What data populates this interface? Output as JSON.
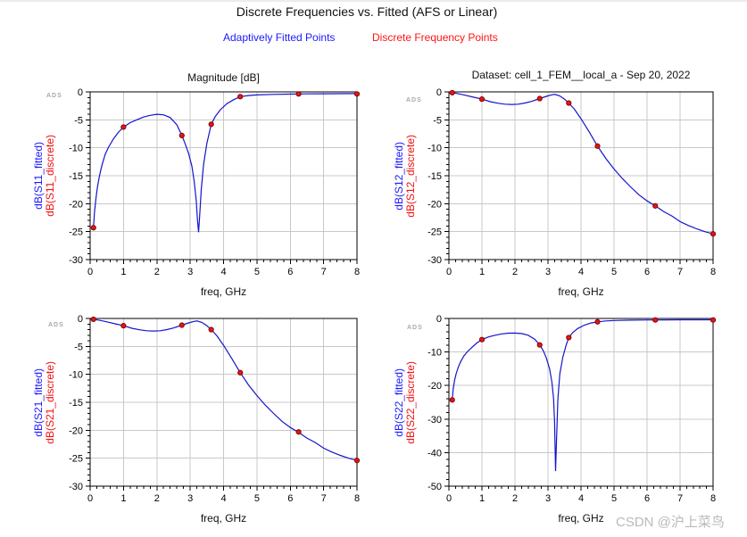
{
  "header": {
    "title": "Discrete Frequencies vs. Fitted (AFS or Linear)",
    "legend_fitted": "Adaptively Fitted Points",
    "legend_discrete": "Discrete Frequency Points"
  },
  "branding": {
    "ads_logo": "ADS",
    "csdn_watermark": "CSDN @沪上菜鸟"
  },
  "colors": {
    "fitted_curve": "#1414cc",
    "discrete_marker": "#e01818",
    "discrete_marker_edge": "#8b0000",
    "legend_fitted_text": "#1a1aff",
    "legend_discrete_text": "#ff1414",
    "grid": "#c8c8c8",
    "axis": "#000000",
    "ads_logo_gray": "#a9a9a9",
    "csdn_watermark_gray": "#b9b9b9"
  },
  "chart_data": [
    {
      "id": "s11",
      "type": "line",
      "title": "Magnitude [dB]",
      "xlabel": "freq, GHz",
      "ylabel_fitted": "dB(S11_fitted)",
      "ylabel_discrete": "dB(S11_discrete)",
      "xlim": [
        0,
        8
      ],
      "ylim": [
        -30,
        0
      ],
      "xticks": [
        0,
        1,
        2,
        3,
        4,
        5,
        6,
        7,
        8
      ],
      "yticks": [
        0,
        -5,
        -10,
        -15,
        -20,
        -25,
        -30
      ],
      "x_minor_subdiv": 5,
      "y_minor_subdiv": 5,
      "grid": true,
      "series": [
        {
          "name": "fitted",
          "style": "line",
          "points": [
            [
              0.1,
              -24.3
            ],
            [
              0.13,
              -21.5
            ],
            [
              0.17,
              -19.2
            ],
            [
              0.22,
              -17.0
            ],
            [
              0.28,
              -15.0
            ],
            [
              0.35,
              -13.2
            ],
            [
              0.45,
              -11.2
            ],
            [
              0.55,
              -9.9
            ],
            [
              0.7,
              -8.4
            ],
            [
              0.85,
              -7.2
            ],
            [
              1.0,
              -6.3
            ],
            [
              1.2,
              -5.5
            ],
            [
              1.4,
              -5.0
            ],
            [
              1.6,
              -4.5
            ],
            [
              1.8,
              -4.2
            ],
            [
              2.0,
              -4.0
            ],
            [
              2.2,
              -4.1
            ],
            [
              2.4,
              -4.6
            ],
            [
              2.6,
              -5.9
            ],
            [
              2.75,
              -7.8
            ],
            [
              2.85,
              -9.3
            ],
            [
              2.95,
              -11.0
            ],
            [
              3.05,
              -13.3
            ],
            [
              3.12,
              -16.0
            ],
            [
              3.18,
              -19.5
            ],
            [
              3.22,
              -23.0
            ],
            [
              3.25,
              -25.1
            ],
            [
              3.28,
              -22.5
            ],
            [
              3.33,
              -17.5
            ],
            [
              3.4,
              -13.0
            ],
            [
              3.5,
              -9.2
            ],
            [
              3.63,
              -5.8
            ],
            [
              3.75,
              -4.4
            ],
            [
              3.9,
              -3.2
            ],
            [
              4.1,
              -2.1
            ],
            [
              4.3,
              -1.4
            ],
            [
              4.5,
              -0.85
            ],
            [
              4.75,
              -0.65
            ],
            [
              5.0,
              -0.55
            ],
            [
              5.5,
              -0.45
            ],
            [
              6.0,
              -0.4
            ],
            [
              6.5,
              -0.35
            ],
            [
              7.0,
              -0.33
            ],
            [
              7.5,
              -0.32
            ],
            [
              8.0,
              -0.3
            ]
          ]
        },
        {
          "name": "discrete",
          "style": "scatter",
          "points": [
            [
              0.1,
              -24.3
            ],
            [
              1.0,
              -6.3
            ],
            [
              2.75,
              -7.8
            ],
            [
              3.63,
              -5.8
            ],
            [
              4.5,
              -0.85
            ],
            [
              6.25,
              -0.37
            ],
            [
              8.0,
              -0.37
            ]
          ]
        }
      ]
    },
    {
      "id": "s12",
      "type": "line",
      "title": "Dataset: cell_1_FEM__local_a - Sep 20, 2022",
      "xlabel": "freq, GHz",
      "ylabel_fitted": "dB(S12_fitted)",
      "ylabel_discrete": "dB(S12_discrete)",
      "xlim": [
        0,
        8
      ],
      "ylim": [
        -30,
        0
      ],
      "xticks": [
        0,
        1,
        2,
        3,
        4,
        5,
        6,
        7,
        8
      ],
      "yticks": [
        0,
        -5,
        -10,
        -15,
        -20,
        -25,
        -30
      ],
      "x_minor_subdiv": 5,
      "y_minor_subdiv": 5,
      "grid": true,
      "series": [
        {
          "name": "fitted",
          "style": "line",
          "points": [
            [
              0.1,
              -0.15
            ],
            [
              0.3,
              -0.35
            ],
            [
              0.5,
              -0.6
            ],
            [
              0.75,
              -0.95
            ],
            [
              1.0,
              -1.3
            ],
            [
              1.25,
              -1.75
            ],
            [
              1.5,
              -2.05
            ],
            [
              1.7,
              -2.2
            ],
            [
              1.9,
              -2.25
            ],
            [
              2.1,
              -2.2
            ],
            [
              2.3,
              -2.0
            ],
            [
              2.5,
              -1.7
            ],
            [
              2.75,
              -1.2
            ],
            [
              2.95,
              -0.8
            ],
            [
              3.1,
              -0.55
            ],
            [
              3.2,
              -0.45
            ],
            [
              3.35,
              -0.7
            ],
            [
              3.5,
              -1.3
            ],
            [
              3.63,
              -2.0
            ],
            [
              3.8,
              -3.1
            ],
            [
              4.0,
              -4.8
            ],
            [
              4.25,
              -7.2
            ],
            [
              4.5,
              -9.7
            ],
            [
              4.75,
              -11.9
            ],
            [
              5.0,
              -13.8
            ],
            [
              5.25,
              -15.5
            ],
            [
              5.5,
              -17.0
            ],
            [
              5.75,
              -18.4
            ],
            [
              6.0,
              -19.5
            ],
            [
              6.25,
              -20.4
            ],
            [
              6.5,
              -21.4
            ],
            [
              6.75,
              -22.2
            ],
            [
              7.0,
              -23.2
            ],
            [
              7.25,
              -23.9
            ],
            [
              7.5,
              -24.5
            ],
            [
              7.75,
              -25.0
            ],
            [
              8.0,
              -25.4
            ]
          ]
        },
        {
          "name": "discrete",
          "style": "scatter",
          "points": [
            [
              0.1,
              -0.15
            ],
            [
              1.0,
              -1.3
            ],
            [
              2.75,
              -1.2
            ],
            [
              3.63,
              -2.0
            ],
            [
              4.5,
              -9.7
            ],
            [
              6.25,
              -20.4
            ],
            [
              8.0,
              -25.4
            ]
          ]
        }
      ]
    },
    {
      "id": "s21",
      "type": "line",
      "title": "",
      "xlabel": "freq, GHz",
      "ylabel_fitted": "dB(S21_fitted)",
      "ylabel_discrete": "dB(S21_discrete)",
      "xlim": [
        0,
        8
      ],
      "ylim": [
        -30,
        0
      ],
      "xticks": [
        0,
        1,
        2,
        3,
        4,
        5,
        6,
        7,
        8
      ],
      "yticks": [
        0,
        -5,
        -10,
        -15,
        -20,
        -25,
        -30
      ],
      "x_minor_subdiv": 5,
      "y_minor_subdiv": 5,
      "grid": true,
      "series": [
        {
          "name": "fitted",
          "style": "line",
          "points": [
            [
              0.1,
              -0.15
            ],
            [
              0.3,
              -0.35
            ],
            [
              0.5,
              -0.6
            ],
            [
              0.75,
              -0.95
            ],
            [
              1.0,
              -1.3
            ],
            [
              1.25,
              -1.75
            ],
            [
              1.5,
              -2.05
            ],
            [
              1.7,
              -2.2
            ],
            [
              1.9,
              -2.25
            ],
            [
              2.1,
              -2.2
            ],
            [
              2.3,
              -2.0
            ],
            [
              2.5,
              -1.7
            ],
            [
              2.75,
              -1.2
            ],
            [
              2.95,
              -0.8
            ],
            [
              3.1,
              -0.55
            ],
            [
              3.2,
              -0.45
            ],
            [
              3.35,
              -0.7
            ],
            [
              3.5,
              -1.3
            ],
            [
              3.63,
              -2.0
            ],
            [
              3.8,
              -3.1
            ],
            [
              4.0,
              -4.8
            ],
            [
              4.25,
              -7.2
            ],
            [
              4.5,
              -9.7
            ],
            [
              4.75,
              -11.9
            ],
            [
              5.0,
              -13.8
            ],
            [
              5.25,
              -15.5
            ],
            [
              5.5,
              -17.0
            ],
            [
              5.75,
              -18.4
            ],
            [
              6.0,
              -19.5
            ],
            [
              6.25,
              -20.4
            ],
            [
              6.5,
              -21.4
            ],
            [
              6.75,
              -22.2
            ],
            [
              7.0,
              -23.2
            ],
            [
              7.25,
              -23.9
            ],
            [
              7.5,
              -24.5
            ],
            [
              7.75,
              -25.0
            ],
            [
              8.0,
              -25.4
            ]
          ]
        },
        {
          "name": "discrete",
          "style": "scatter",
          "points": [
            [
              0.1,
              -0.15
            ],
            [
              1.0,
              -1.3
            ],
            [
              2.75,
              -1.2
            ],
            [
              3.63,
              -2.0
            ],
            [
              4.5,
              -9.7
            ],
            [
              6.25,
              -20.3
            ],
            [
              8.0,
              -25.4
            ]
          ]
        }
      ]
    },
    {
      "id": "s22",
      "type": "line",
      "title": "",
      "xlabel": "freq, GHz",
      "ylabel_fitted": "dB(S22_fitted)",
      "ylabel_discrete": "dB(S22_discrete)",
      "xlim": [
        0,
        8
      ],
      "ylim": [
        -50,
        0
      ],
      "xticks": [
        0,
        1,
        2,
        3,
        4,
        5,
        6,
        7,
        8
      ],
      "yticks": [
        0,
        -10,
        -20,
        -30,
        -40,
        -50
      ],
      "x_minor_subdiv": 5,
      "y_minor_subdiv": 5,
      "grid": true,
      "series": [
        {
          "name": "fitted",
          "style": "line",
          "points": [
            [
              0.1,
              -24.3
            ],
            [
              0.13,
              -21.0
            ],
            [
              0.17,
              -18.5
            ],
            [
              0.22,
              -16.5
            ],
            [
              0.28,
              -14.6
            ],
            [
              0.35,
              -13.0
            ],
            [
              0.45,
              -11.2
            ],
            [
              0.55,
              -10.0
            ],
            [
              0.7,
              -8.6
            ],
            [
              0.85,
              -7.3
            ],
            [
              1.0,
              -6.3
            ],
            [
              1.2,
              -5.5
            ],
            [
              1.4,
              -5.0
            ],
            [
              1.6,
              -4.6
            ],
            [
              1.8,
              -4.4
            ],
            [
              2.0,
              -4.35
            ],
            [
              2.2,
              -4.5
            ],
            [
              2.4,
              -5.0
            ],
            [
              2.6,
              -6.2
            ],
            [
              2.75,
              -7.9
            ],
            [
              2.85,
              -9.5
            ],
            [
              2.95,
              -11.8
            ],
            [
              3.05,
              -15.0
            ],
            [
              3.12,
              -19.0
            ],
            [
              3.17,
              -24.0
            ],
            [
              3.2,
              -31.0
            ],
            [
              3.23,
              -45.5
            ],
            [
              3.26,
              -36.0
            ],
            [
              3.3,
              -24.0
            ],
            [
              3.36,
              -16.5
            ],
            [
              3.45,
              -11.5
            ],
            [
              3.55,
              -8.0
            ],
            [
              3.63,
              -5.7
            ],
            [
              3.75,
              -4.2
            ],
            [
              3.9,
              -3.0
            ],
            [
              4.1,
              -2.0
            ],
            [
              4.3,
              -1.35
            ],
            [
              4.5,
              -1.0
            ],
            [
              4.75,
              -0.75
            ],
            [
              5.0,
              -0.6
            ],
            [
              5.5,
              -0.5
            ],
            [
              6.0,
              -0.45
            ],
            [
              6.5,
              -0.42
            ],
            [
              7.0,
              -0.4
            ],
            [
              7.5,
              -0.4
            ],
            [
              8.0,
              -0.4
            ]
          ]
        },
        {
          "name": "discrete",
          "style": "scatter",
          "points": [
            [
              0.1,
              -24.3
            ],
            [
              1.0,
              -6.3
            ],
            [
              2.75,
              -7.9
            ],
            [
              3.63,
              -5.7
            ],
            [
              4.5,
              -1.0
            ],
            [
              6.25,
              -0.45
            ],
            [
              8.0,
              -0.45
            ]
          ]
        }
      ]
    }
  ]
}
